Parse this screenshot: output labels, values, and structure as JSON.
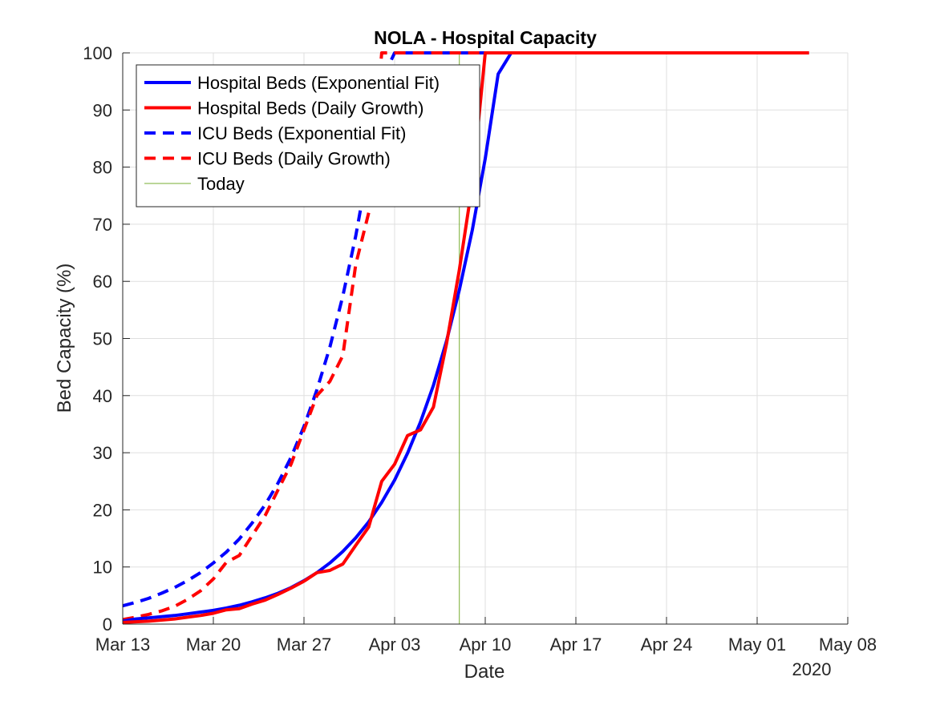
{
  "chart_data": {
    "type": "line",
    "title": "NOLA - Hospital Capacity",
    "xlabel": "Date",
    "ylabel": "Bed Capacity (%)",
    "year_label": "2020",
    "x_start": "2020-03-13",
    "xlim": [
      "2020-03-13",
      "2020-05-08"
    ],
    "ylim": [
      0,
      100
    ],
    "grid": true,
    "legend_position": "top-left",
    "x_ticks": [
      {
        "date": "2020-03-13",
        "label": "Mar 13"
      },
      {
        "date": "2020-03-20",
        "label": "Mar 20"
      },
      {
        "date": "2020-03-27",
        "label": "Mar 27"
      },
      {
        "date": "2020-04-03",
        "label": "Apr 03"
      },
      {
        "date": "2020-04-10",
        "label": "Apr 10"
      },
      {
        "date": "2020-04-17",
        "label": "Apr 17"
      },
      {
        "date": "2020-04-24",
        "label": "Apr 24"
      },
      {
        "date": "2020-05-01",
        "label": "May 01"
      },
      {
        "date": "2020-05-08",
        "label": "May 08"
      }
    ],
    "y_ticks": [
      0,
      10,
      20,
      30,
      40,
      50,
      60,
      70,
      80,
      90,
      100
    ],
    "today": {
      "name": "Today",
      "date": "2020-04-08",
      "color": "#77ac30"
    },
    "series": [
      {
        "name": "Hospital Beds (Exponential Fit)",
        "color": "#0000ff",
        "dash": "solid",
        "points": [
          [
            "2020-03-13",
            0.5
          ],
          [
            "2020-03-14",
            0.9
          ],
          [
            "2020-03-15",
            1.1
          ],
          [
            "2020-03-16",
            1.3
          ],
          [
            "2020-03-17",
            1.5
          ],
          [
            "2020-03-18",
            1.8
          ],
          [
            "2020-03-19",
            2.1
          ],
          [
            "2020-03-20",
            2.4
          ],
          [
            "2020-03-21",
            2.8
          ],
          [
            "2020-03-22",
            3.3
          ],
          [
            "2020-03-23",
            3.9
          ],
          [
            "2020-03-24",
            4.6
          ],
          [
            "2020-03-25",
            5.4
          ],
          [
            "2020-03-26",
            6.4
          ],
          [
            "2020-03-27",
            7.6
          ],
          [
            "2020-03-28",
            9.0
          ],
          [
            "2020-03-29",
            10.7
          ],
          [
            "2020-03-30",
            12.7
          ],
          [
            "2020-03-31",
            15.1
          ],
          [
            "2020-04-01",
            17.9
          ],
          [
            "2020-04-02",
            21.3
          ],
          [
            "2020-04-03",
            25.2
          ],
          [
            "2020-04-04",
            29.9
          ],
          [
            "2020-04-05",
            35.4
          ],
          [
            "2020-04-06",
            41.8
          ],
          [
            "2020-04-07",
            49.5
          ],
          [
            "2020-04-08",
            58.5
          ],
          [
            "2020-04-09",
            69.0
          ],
          [
            "2020-04-10",
            81.5
          ],
          [
            "2020-04-11",
            96.3
          ],
          [
            "2020-04-12",
            100
          ],
          [
            "2020-04-20",
            100
          ],
          [
            "2020-05-01",
            100
          ],
          [
            "2020-05-05",
            100
          ]
        ]
      },
      {
        "name": "Hospital Beds (Daily Growth)",
        "color": "#ff0000",
        "dash": "solid",
        "points": [
          [
            "2020-03-13",
            0.3
          ],
          [
            "2020-03-14",
            0.4
          ],
          [
            "2020-03-15",
            0.5
          ],
          [
            "2020-03-16",
            0.7
          ],
          [
            "2020-03-17",
            0.9
          ],
          [
            "2020-03-18",
            1.2
          ],
          [
            "2020-03-19",
            1.5
          ],
          [
            "2020-03-20",
            1.9
          ],
          [
            "2020-03-21",
            2.5
          ],
          [
            "2020-03-22",
            2.7
          ],
          [
            "2020-03-23",
            3.5
          ],
          [
            "2020-03-24",
            4.2
          ],
          [
            "2020-03-25",
            5.2
          ],
          [
            "2020-03-26",
            6.3
          ],
          [
            "2020-03-27",
            7.5
          ],
          [
            "2020-03-28",
            9.0
          ],
          [
            "2020-03-29",
            9.4
          ],
          [
            "2020-03-30",
            10.5
          ],
          [
            "2020-03-31",
            13.8
          ],
          [
            "2020-04-01",
            17.0
          ],
          [
            "2020-04-02",
            25.0
          ],
          [
            "2020-04-03",
            28.0
          ],
          [
            "2020-04-04",
            33.0
          ],
          [
            "2020-04-05",
            34.0
          ],
          [
            "2020-04-06",
            38.0
          ],
          [
            "2020-04-07",
            49.0
          ],
          [
            "2020-04-08",
            62.0
          ],
          [
            "2020-04-09",
            77.0
          ],
          [
            "2020-04-10",
            100
          ],
          [
            "2020-04-20",
            100
          ],
          [
            "2020-05-01",
            100
          ],
          [
            "2020-05-05",
            100
          ]
        ]
      },
      {
        "name": "ICU Beds (Exponential Fit)",
        "color": "#0000ff",
        "dash": "dashed",
        "points": [
          [
            "2020-03-13",
            3.2
          ],
          [
            "2020-03-14",
            3.8
          ],
          [
            "2020-03-15",
            4.5
          ],
          [
            "2020-03-16",
            5.4
          ],
          [
            "2020-03-17",
            6.4
          ],
          [
            "2020-03-18",
            7.6
          ],
          [
            "2020-03-19",
            9.0
          ],
          [
            "2020-03-20",
            10.7
          ],
          [
            "2020-03-21",
            12.6
          ],
          [
            "2020-03-22",
            14.9
          ],
          [
            "2020-03-23",
            17.7
          ],
          [
            "2020-03-24",
            20.9
          ],
          [
            "2020-03-25",
            24.7
          ],
          [
            "2020-03-26",
            29.2
          ],
          [
            "2020-03-27",
            34.6
          ],
          [
            "2020-03-28",
            41.0
          ],
          [
            "2020-03-29",
            48.5
          ],
          [
            "2020-03-30",
            57.4
          ],
          [
            "2020-03-31",
            68.0
          ],
          [
            "2020-04-01",
            80.5
          ],
          [
            "2020-04-02",
            95.2
          ],
          [
            "2020-04-03",
            100
          ],
          [
            "2020-04-20",
            100
          ],
          [
            "2020-05-01",
            100
          ],
          [
            "2020-05-05",
            100
          ]
        ]
      },
      {
        "name": "ICU Beds (Daily Growth)",
        "color": "#ff0000",
        "dash": "dashed",
        "points": [
          [
            "2020-03-13",
            0.8
          ],
          [
            "2020-03-14",
            1.2
          ],
          [
            "2020-03-15",
            1.7
          ],
          [
            "2020-03-16",
            2.3
          ],
          [
            "2020-03-17",
            3.1
          ],
          [
            "2020-03-18",
            4.3
          ],
          [
            "2020-03-19",
            5.8
          ],
          [
            "2020-03-20",
            7.9
          ],
          [
            "2020-03-21",
            10.8
          ],
          [
            "2020-03-22",
            12.0
          ],
          [
            "2020-03-23",
            15.5
          ],
          [
            "2020-03-24",
            19.0
          ],
          [
            "2020-03-25",
            23.5
          ],
          [
            "2020-03-26",
            28.0
          ],
          [
            "2020-03-27",
            34.0
          ],
          [
            "2020-03-28",
            40.0
          ],
          [
            "2020-03-29",
            42.5
          ],
          [
            "2020-03-30",
            47.0
          ],
          [
            "2020-03-31",
            63.0
          ],
          [
            "2020-04-01",
            72.0
          ],
          [
            "2020-04-02",
            100
          ],
          [
            "2020-04-20",
            100
          ],
          [
            "2020-05-01",
            100
          ],
          [
            "2020-05-05",
            100
          ]
        ]
      }
    ]
  }
}
